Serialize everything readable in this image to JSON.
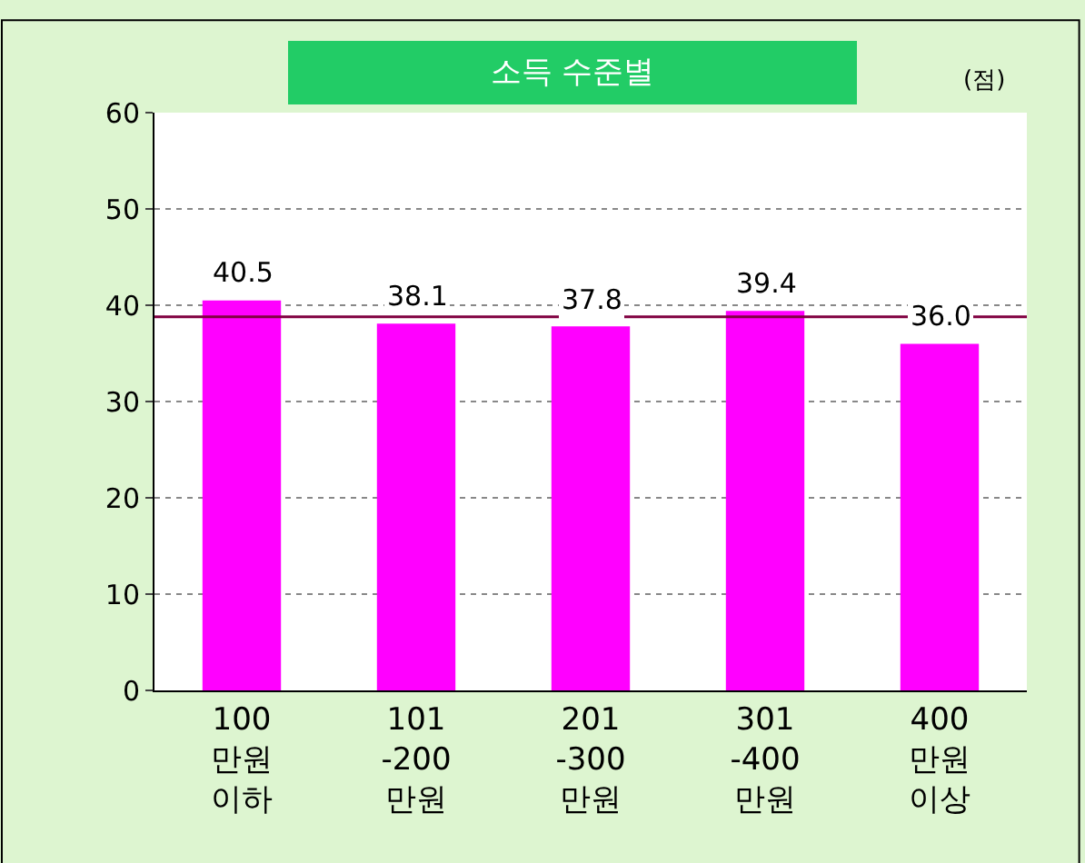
{
  "chart_data": {
    "type": "bar",
    "title": "소득 수준별",
    "annotations": [
      "(점)"
    ],
    "categories": [
      "100\n만원\n이하",
      "101\n-200\n만원",
      "201\n-300\n만원",
      "301\n-400\n만원",
      "400\n만원\n이상"
    ],
    "values": [
      40.5,
      38.1,
      37.8,
      39.4,
      36.0
    ],
    "value_labels": [
      "40.5",
      "38.1",
      "37.8",
      "39.4",
      "36.0"
    ],
    "color": "#ff00ff",
    "ylim": [
      0,
      60
    ],
    "yticks": [
      0,
      10,
      20,
      30,
      40,
      50,
      60
    ],
    "grid": "y",
    "ref_lines": [
      {
        "axis": "y",
        "value": 38.8,
        "color": "#800040"
      }
    ]
  }
}
